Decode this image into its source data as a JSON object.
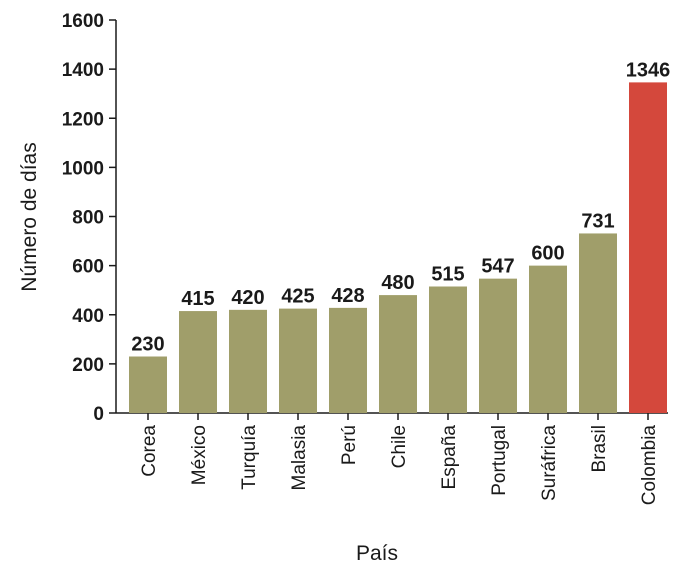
{
  "chart_data": {
    "type": "bar",
    "xlabel": "País",
    "ylabel": "Número de días",
    "ylim": [
      0,
      1600
    ],
    "yticks": [
      "0",
      "200",
      "400",
      "600",
      "800",
      "1000",
      "1200",
      "1400",
      "1600"
    ],
    "grid": false,
    "categories": [
      "Corea",
      "México",
      "Turquía",
      "Malasia",
      "Perú",
      "Chile",
      "España",
      "Portugal",
      "Suráfrica",
      "Brasil",
      "Colombia"
    ],
    "values": [
      230,
      415,
      420,
      425,
      428,
      480,
      515,
      547,
      600,
      731,
      1346
    ],
    "value_labels": [
      "230",
      "415",
      "420",
      "425",
      "428",
      "480",
      "515",
      "547",
      "600",
      "731",
      "1346"
    ],
    "highlight": "Colombia",
    "colors": {
      "bar": "#a09e6a",
      "highlight_bar": "#d4483c",
      "highlight_label": "#d4483c",
      "axis": "#1a1a1a"
    }
  }
}
